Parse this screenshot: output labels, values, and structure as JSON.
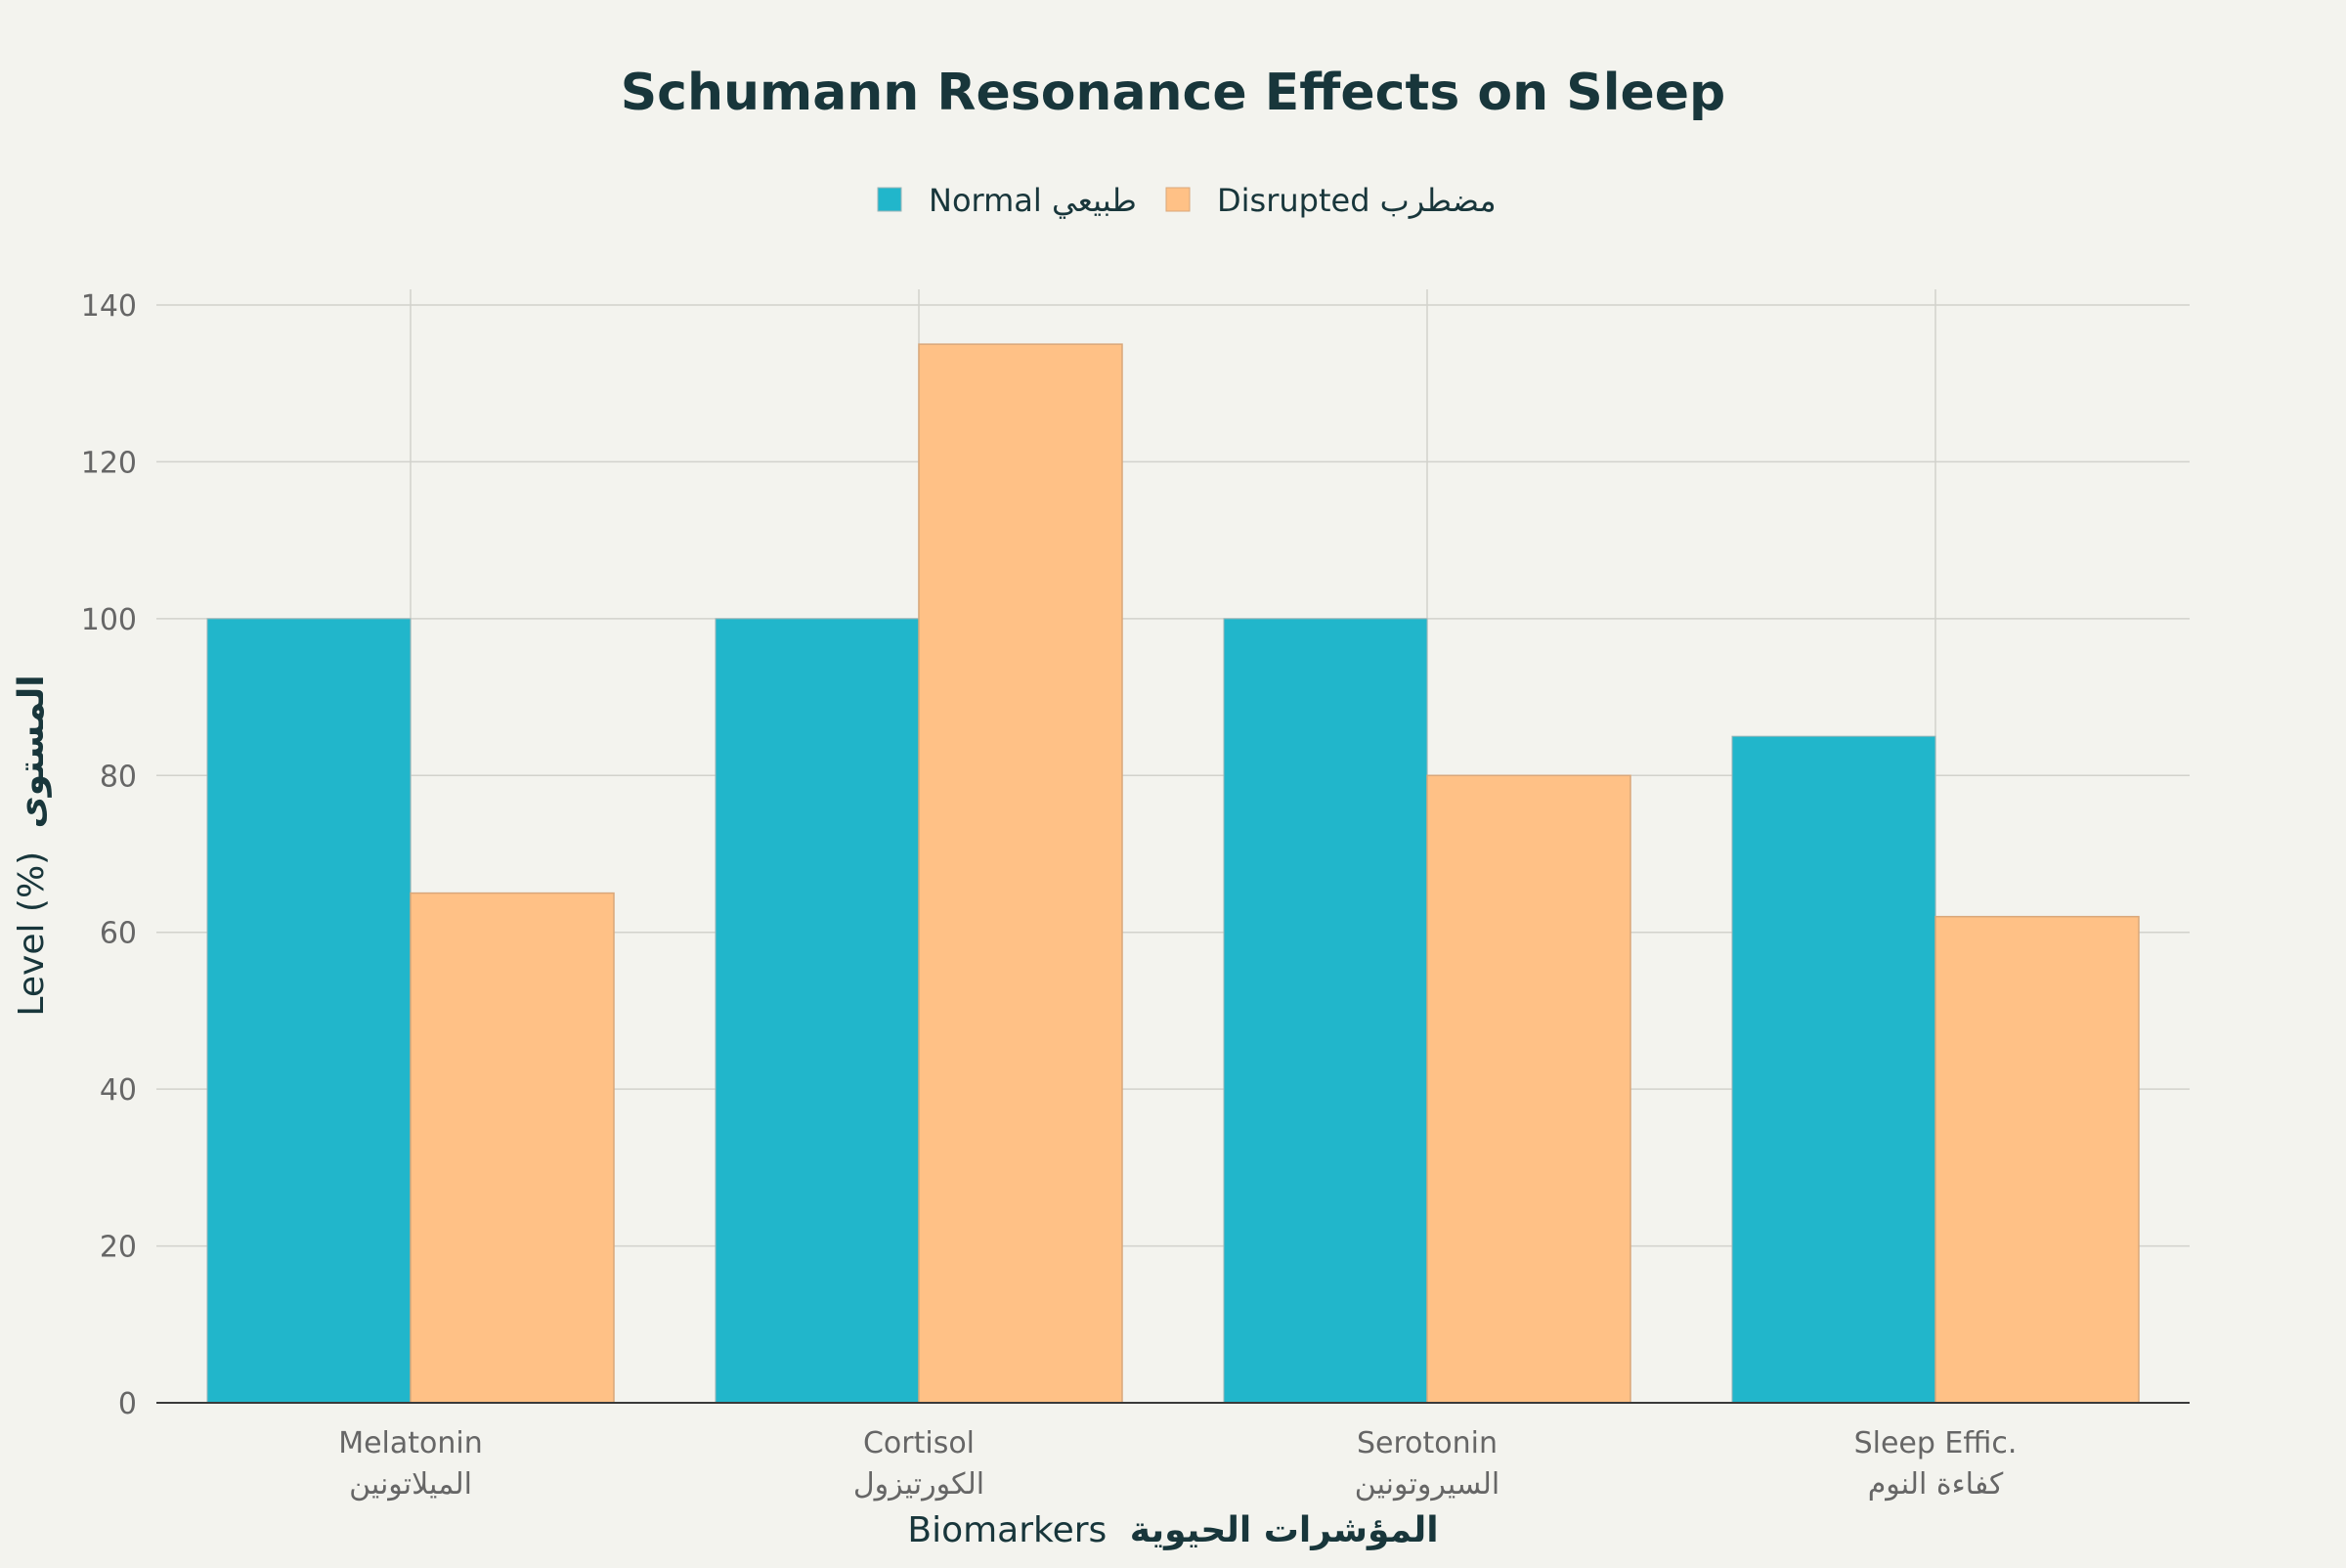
{
  "chart_data": {
    "type": "bar",
    "title": "Schumann Resonance Effects on Sleep",
    "xlabel": {
      "en": "Biomarkers",
      "ar": "المؤشرات الحيوية"
    },
    "ylabel": {
      "en": "Level (%)",
      "ar": "المستوى"
    },
    "ylim": [
      0,
      140
    ],
    "yticks": [
      0,
      20,
      40,
      60,
      80,
      100,
      120,
      140
    ],
    "categories": [
      {
        "en": "Melatonin",
        "ar": "الميلاتونين"
      },
      {
        "en": "Cortisol",
        "ar": "الكورتيزول"
      },
      {
        "en": "Serotonin",
        "ar": "السيروتونين"
      },
      {
        "en": "Sleep Effic.",
        "ar": "كفاءة النوم"
      }
    ],
    "series": [
      {
        "name": "Normal طبيعي",
        "color": "#21b6cb",
        "values": [
          100,
          100,
          100,
          85
        ]
      },
      {
        "name": "Disrupted مضطرب",
        "color": "#ffc186",
        "values": [
          65,
          135,
          80,
          62
        ]
      }
    ],
    "grid": true,
    "legend_position": "top-center"
  }
}
